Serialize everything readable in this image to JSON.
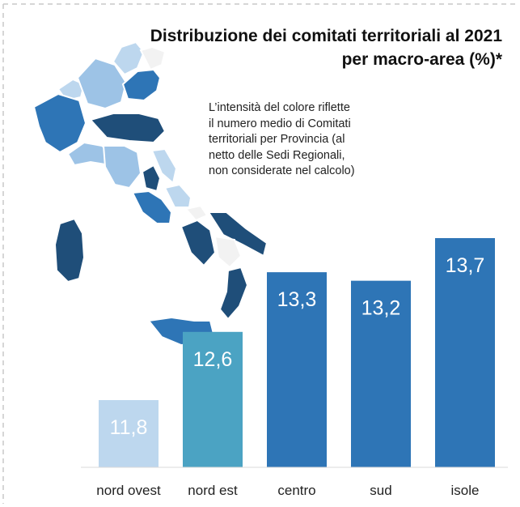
{
  "chart_data": {
    "type": "bar",
    "title_line1": "Distribuzione dei comitati territoriali al 2021",
    "title_line2": "per macro-area (%)*",
    "note_lines": [
      "L’intensità del colore riflette",
      "il numero medio di Comitati",
      "territoriali per Provincia (al",
      "netto delle Sedi Regionali,",
      "non considerate nel calcolo)"
    ],
    "categories": [
      "nord ovest",
      "nord est",
      "centro",
      "sud",
      "isole"
    ],
    "values": [
      11.8,
      12.6,
      13.3,
      13.2,
      13.7
    ],
    "value_labels": [
      "11,8",
      "12,6",
      "13,3",
      "13,2",
      "13,7"
    ],
    "colors": [
      "#bdd7ee",
      "#4ba3c3",
      "#2e75b6",
      "#2e75b6",
      "#2e75b6"
    ],
    "grid": false,
    "legend": "none"
  },
  "map_colors": {
    "dark": "#1f4e79",
    "mid": "#2e75b6",
    "light": "#9dc3e6",
    "pale": "#bdd7ee",
    "grey": "#f2f2f2"
  }
}
